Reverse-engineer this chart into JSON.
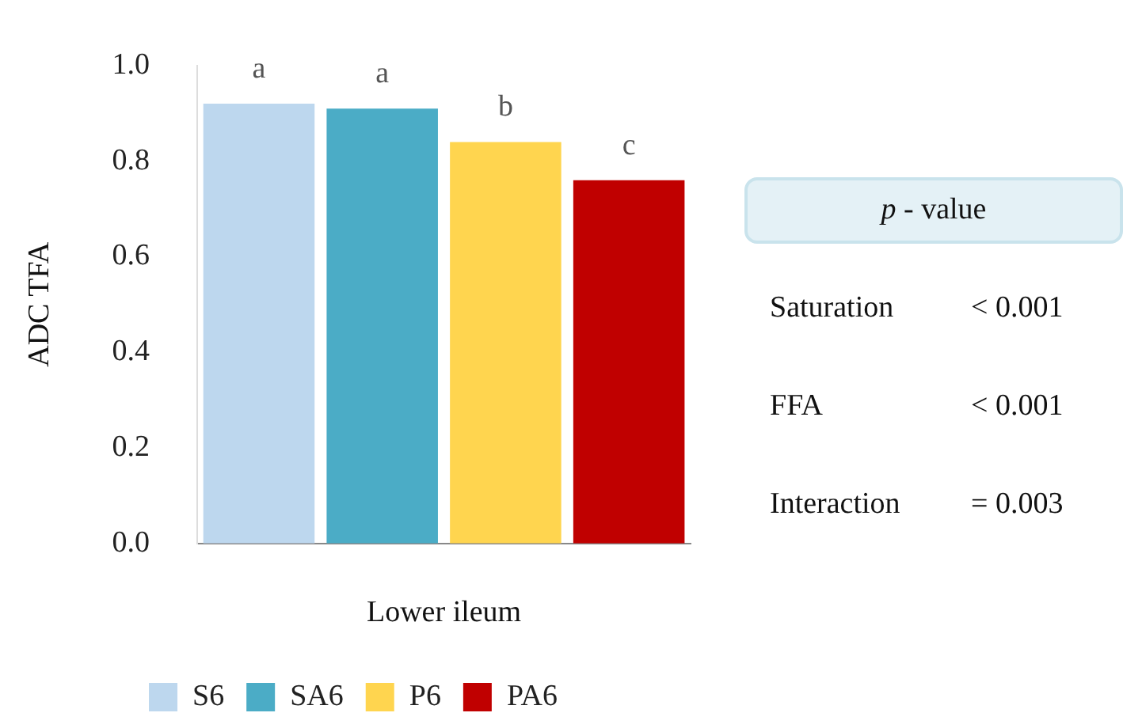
{
  "chart_data": {
    "type": "bar",
    "ylabel": "ADC TFA",
    "xlabel": "Lower ileum",
    "categories": [
      null,
      null,
      null,
      null
    ],
    "stacked": true,
    "series": [
      {
        "name": "S6",
        "color": "#bdd7ee",
        "values": [
          0.92,
          null,
          null,
          null
        ],
        "value_labels": [
          "a",
          null,
          null,
          null
        ]
      },
      {
        "name": "SA6",
        "color": "#4bacc6",
        "values": [
          null,
          0.91,
          null,
          null
        ],
        "value_labels": [
          null,
          "a",
          null,
          null
        ]
      },
      {
        "name": "P6",
        "color": "#ffd54f",
        "values": [
          null,
          null,
          0.84,
          null
        ],
        "value_labels": [
          null,
          null,
          "b",
          null
        ]
      },
      {
        "name": "PA6",
        "color": "#c00000",
        "values": [
          null,
          null,
          null,
          0.76
        ],
        "value_labels": [
          null,
          null,
          null,
          "c"
        ]
      }
    ],
    "ylim": [
      0,
      1
    ],
    "yticks": [
      {
        "value": 0,
        "label": "0.0"
      },
      {
        "value": 0.2,
        "label": "0.2"
      },
      {
        "value": 0.4,
        "label": "0.4"
      },
      {
        "value": 0.6,
        "label": "0.6"
      },
      {
        "value": 0.8,
        "label": "0.8"
      },
      {
        "value": 1,
        "label": "1.0"
      }
    ],
    "grid": false,
    "legend": "bottom",
    "annotations": [
      "p - value",
      "Saturation",
      "< 0.001",
      "FFA",
      "< 0.001",
      "Interaction",
      "= 0.003"
    ]
  }
}
